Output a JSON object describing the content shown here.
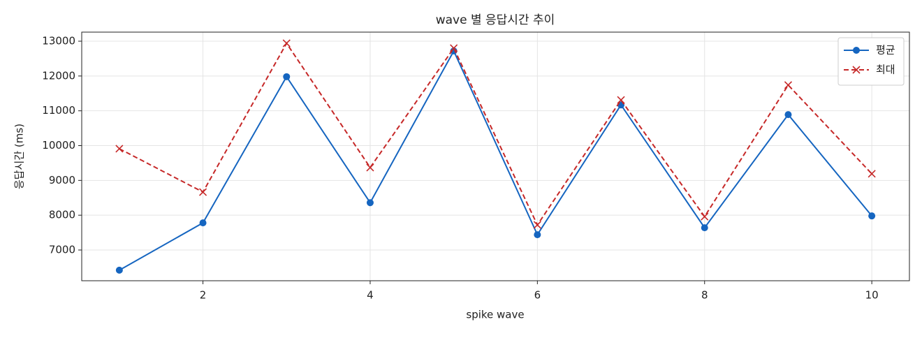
{
  "chart_data": {
    "type": "line",
    "title": "wave 별 응답시간 추이",
    "xlabel": "spike wave",
    "ylabel": "응답시간 (ms)",
    "x": [
      1,
      2,
      3,
      4,
      5,
      6,
      7,
      8,
      9,
      10
    ],
    "series": [
      {
        "name": "평균",
        "color": "#1565c0",
        "linestyle": "solid",
        "marker": "o",
        "values": [
          6420,
          7780,
          11980,
          8360,
          12720,
          7440,
          11170,
          7640,
          10890,
          7980
        ]
      },
      {
        "name": "최대",
        "color": "#c62828",
        "linestyle": "dashed",
        "marker": "x",
        "values": [
          9910,
          8665,
          12940,
          9370,
          12800,
          7720,
          11310,
          7960,
          11740,
          9190
        ]
      }
    ],
    "xlim": [
      0.55,
      10.45
    ],
    "xticks": [
      2,
      4,
      6,
      8,
      10
    ],
    "ylim": [
      6117,
      13261
    ],
    "yticks": [
      7000,
      8000,
      9000,
      10000,
      11000,
      12000,
      13000
    ],
    "grid": true,
    "legend": "upper right"
  }
}
